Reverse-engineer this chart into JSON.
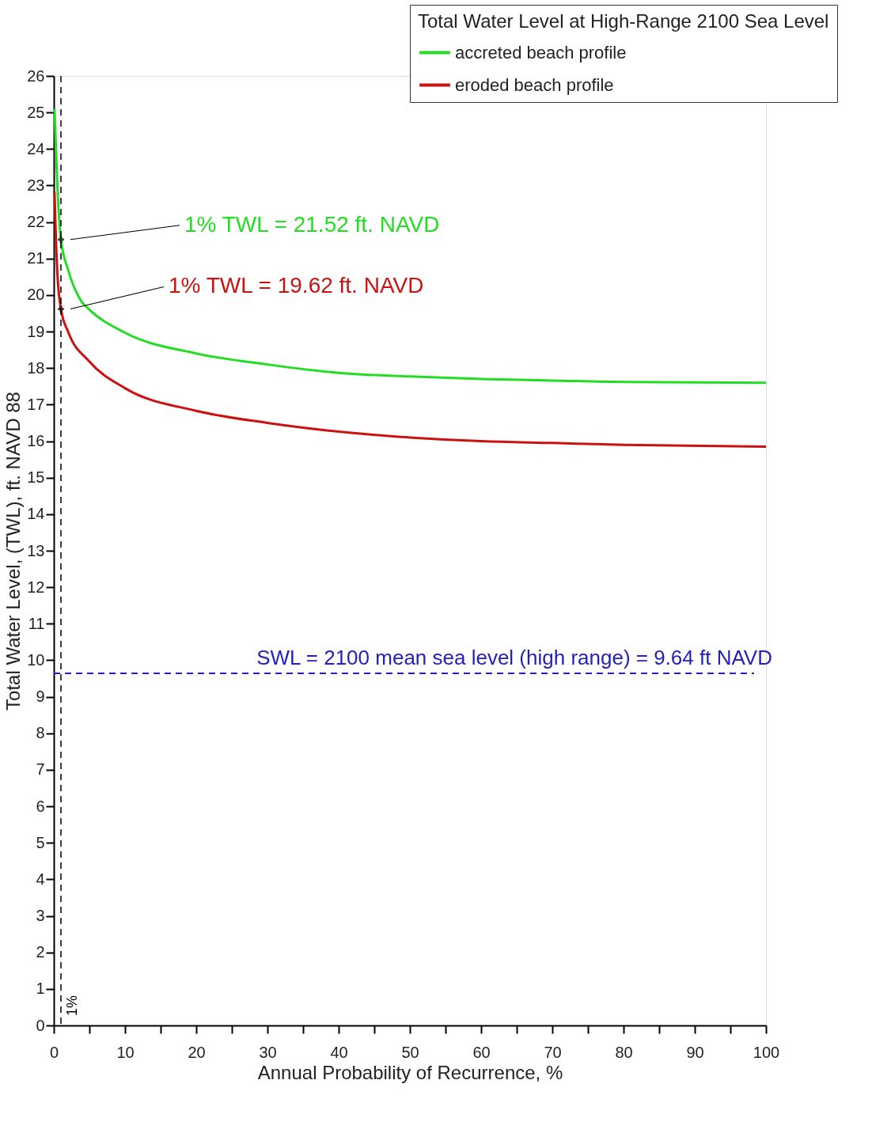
{
  "chart_data": {
    "type": "line",
    "xlabel": "Annual Probability of Recurrence, %",
    "ylabel": "Total Water Level, (TWL), ft. NAVD 88",
    "legend_title": "Total Water Level at High-Range 2100 Sea Level",
    "legend": "top right",
    "grid": false,
    "line_style": "solid",
    "xlim": [
      0,
      100
    ],
    "xticks": [
      0,
      {
        "value": 5,
        "label": null
      },
      10,
      {
        "value": 15,
        "label": null
      },
      20,
      {
        "value": 25,
        "label": null
      },
      30,
      {
        "value": 35,
        "label": null
      },
      40,
      {
        "value": 45,
        "label": null
      },
      50,
      {
        "value": 55,
        "label": null
      },
      60,
      {
        "value": 65,
        "label": null
      },
      70,
      {
        "value": 75,
        "label": null
      },
      80,
      {
        "value": 85,
        "label": null
      },
      90,
      {
        "value": 95,
        "label": null
      },
      100
    ],
    "ylim": [
      0,
      26
    ],
    "yticks": [
      0,
      1,
      2,
      3,
      4,
      5,
      6,
      7,
      8,
      9,
      10,
      11,
      12,
      13,
      14,
      15,
      16,
      17,
      18,
      19,
      20,
      21,
      22,
      23,
      24,
      25,
      26
    ],
    "series": [
      {
        "name": "accreted  beach profile",
        "color": "#22dd22",
        "x": [
          0.1,
          0.3,
          0.5,
          1,
          2,
          3.8,
          5,
          10,
          20,
          30,
          40,
          50,
          60,
          70,
          80,
          100
        ],
        "values": [
          25.1,
          24,
          23,
          21.52,
          20.7,
          19.85,
          19.6,
          18.97,
          18.4,
          18.1,
          17.87,
          17.77,
          17.7,
          17.66,
          17.62,
          17.6
        ]
      },
      {
        "name": "eroded beach profile",
        "color": "#cc1111",
        "x": [
          0.1,
          0.3,
          0.5,
          1,
          2,
          5,
          10,
          20,
          30,
          40,
          50,
          60,
          70,
          80,
          100
        ],
        "values": [
          22.83,
          21.5,
          20.6,
          19.62,
          19.0,
          18.18,
          17.45,
          16.83,
          16.5,
          16.26,
          16.1,
          16.0,
          15.95,
          15.9,
          15.85
        ]
      },
      {
        "type": "scatter",
        "marker": "cross",
        "color": "#000000",
        "x": [
          1,
          1
        ],
        "values": [
          21.52,
          19.62
        ]
      }
    ],
    "ref_lines": [
      {
        "axis": "x",
        "value": 1,
        "label": "1%",
        "color": "#000000",
        "line_style": "dashed"
      },
      {
        "axis": "y",
        "value": 9.64,
        "label": "SWL = 2100 mean sea level (high range) = 9.64 ft NAVD",
        "color": "#2222bb",
        "line_style": "dashed"
      }
    ],
    "annotations": [
      "1% TWL = 21.52 ft. NAVD",
      "1% TWL  = 19.62 ft. NAVD"
    ]
  }
}
